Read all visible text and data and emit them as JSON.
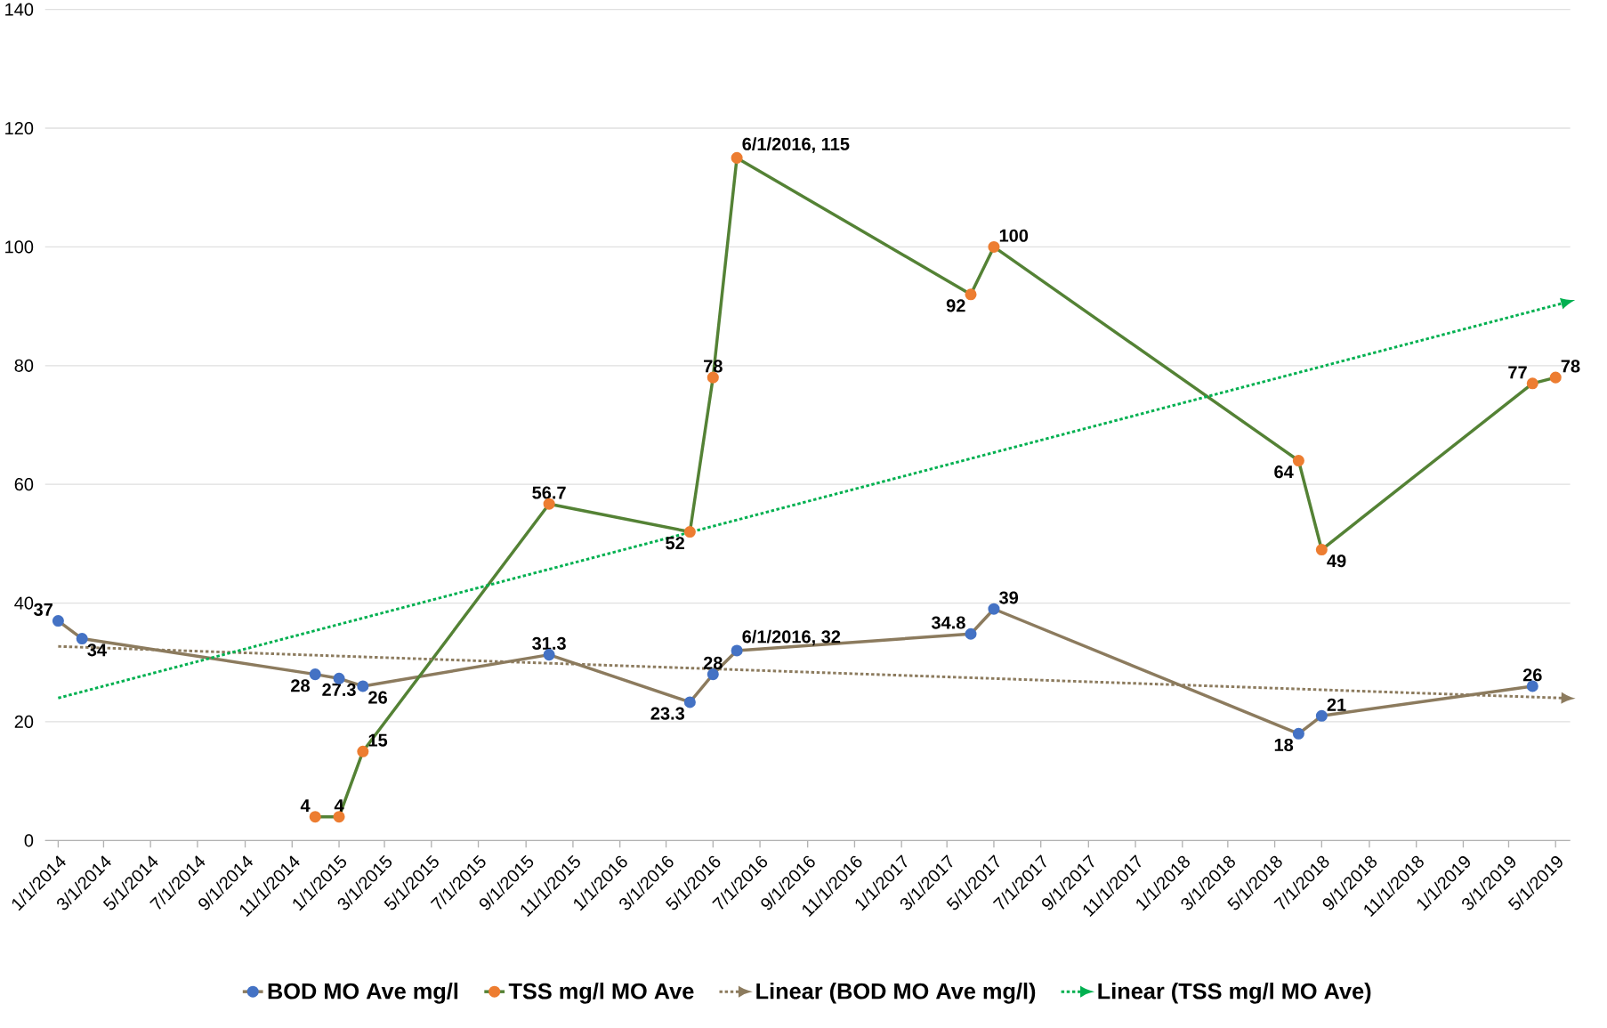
{
  "chart_data": {
    "type": "line",
    "xlim": [
      "2013-12-15",
      "2019-05-20"
    ],
    "xticks": [
      {
        "value": "2014-01-01",
        "label": "1/1/2014"
      },
      {
        "value": "2014-03-01",
        "label": "3/1/2014"
      },
      {
        "value": "2014-05-01",
        "label": "5/1/2014"
      },
      {
        "value": "2014-07-01",
        "label": "7/1/2014"
      },
      {
        "value": "2014-09-01",
        "label": "9/1/2014"
      },
      {
        "value": "2014-11-01",
        "label": "11/1/2014"
      },
      {
        "value": "2015-01-01",
        "label": "1/1/2015"
      },
      {
        "value": "2015-03-01",
        "label": "3/1/2015"
      },
      {
        "value": "2015-05-01",
        "label": "5/1/2015"
      },
      {
        "value": "2015-07-01",
        "label": "7/1/2015"
      },
      {
        "value": "2015-09-01",
        "label": "9/1/2015"
      },
      {
        "value": "2015-11-01",
        "label": "11/1/2015"
      },
      {
        "value": "2016-01-01",
        "label": "1/1/2016"
      },
      {
        "value": "2016-03-01",
        "label": "3/1/2016"
      },
      {
        "value": "2016-05-01",
        "label": "5/1/2016"
      },
      {
        "value": "2016-07-01",
        "label": "7/1/2016"
      },
      {
        "value": "2016-09-01",
        "label": "9/1/2016"
      },
      {
        "value": "2016-11-01",
        "label": "11/1/2016"
      },
      {
        "value": "2017-01-01",
        "label": "1/1/2017"
      },
      {
        "value": "2017-03-01",
        "label": "3/1/2017"
      },
      {
        "value": "2017-05-01",
        "label": "5/1/2017"
      },
      {
        "value": "2017-07-01",
        "label": "7/1/2017"
      },
      {
        "value": "2017-09-01",
        "label": "9/1/2017"
      },
      {
        "value": "2017-11-01",
        "label": "11/1/2017"
      },
      {
        "value": "2018-01-01",
        "label": "1/1/2018"
      },
      {
        "value": "2018-03-01",
        "label": "3/1/2018"
      },
      {
        "value": "2018-05-01",
        "label": "5/1/2018"
      },
      {
        "value": "2018-07-01",
        "label": "7/1/2018"
      },
      {
        "value": "2018-09-01",
        "label": "9/1/2018"
      },
      {
        "value": "2018-11-01",
        "label": "11/1/2018"
      },
      {
        "value": "2019-01-01",
        "label": "1/1/2019"
      },
      {
        "value": "2019-03-01",
        "label": "3/1/2019"
      },
      {
        "value": "2019-05-01",
        "label": "5/1/2019"
      }
    ],
    "ylim": [
      0,
      140
    ],
    "yticks": [
      0,
      20,
      40,
      60,
      80,
      100,
      120,
      140
    ],
    "grid": "y",
    "legend": "bottom",
    "series": [
      {
        "name": "BOD MO Ave mg/l",
        "color": "#8c7b5e",
        "marker": "circle",
        "colors": [
          "#4472c4",
          "#4472c4",
          "#4472c4",
          "#4472c4",
          "#4472c4",
          "#4472c4",
          "#4472c4",
          "#4472c4",
          "#4472c4",
          "#4472c4",
          "#4472c4",
          "#4472c4",
          "#4472c4",
          "#4472c4"
        ],
        "x": [
          "2014-01-01",
          "2014-02-01",
          "2014-12-01",
          "2015-01-01",
          "2015-02-01",
          "2015-10-01",
          "2016-04-01",
          "2016-05-01",
          "2016-06-01",
          "2017-04-01",
          "2017-05-01",
          "2018-06-01",
          "2018-07-01",
          "2019-04-01"
        ],
        "values": [
          37,
          34,
          28,
          27.3,
          26,
          31.3,
          23.3,
          28,
          32,
          34.8,
          39,
          18,
          21,
          26
        ],
        "value_labels": [
          "37",
          "34",
          "28",
          "27.3",
          "26",
          "31.3",
          "23.3",
          "28",
          "6/1/2016, 32",
          "34.8",
          "39",
          "18",
          "21",
          "26"
        ]
      },
      {
        "name": "TSS mg/l MO Ave",
        "color": "#548235",
        "marker": "circle",
        "colors": [
          "#ed7d31",
          "#ed7d31",
          "#ed7d31",
          "#ed7d31",
          "#ed7d31",
          "#ed7d31",
          "#ed7d31",
          "#ed7d31",
          "#ed7d31",
          "#ed7d31",
          "#ed7d31",
          "#ed7d31",
          "#ed7d31"
        ],
        "x": [
          "2014-12-01",
          "2015-01-01",
          "2015-02-01",
          "2015-10-01",
          "2016-04-01",
          "2016-05-01",
          "2016-06-01",
          "2017-04-01",
          "2017-05-01",
          "2018-06-01",
          "2018-07-01",
          "2019-04-01",
          "2019-05-01"
        ],
        "values": [
          4,
          4,
          15,
          56.7,
          52,
          78,
          115,
          92,
          100,
          64,
          49,
          77,
          78
        ],
        "value_labels": [
          "4",
          "4",
          "15",
          "56.7",
          "52",
          "78",
          "6/1/2016, 115",
          "92",
          "100",
          "64",
          "49",
          "77",
          "78"
        ]
      },
      {
        "name": "Linear (BOD MO Ave mg/l)",
        "type": "line",
        "color": "#8c7b5e",
        "line_style": "dotted",
        "marker": "none",
        "x": [
          "2014-01-01",
          "2019-05-10"
        ],
        "values": [
          32.7,
          24
        ]
      },
      {
        "name": "Linear (TSS mg/l MO Ave)",
        "type": "line",
        "color": "#00b050",
        "line_style": "dotted",
        "marker": "none",
        "x": [
          "2014-01-01",
          "2019-05-10"
        ],
        "values": [
          24,
          90.5
        ]
      }
    ]
  }
}
